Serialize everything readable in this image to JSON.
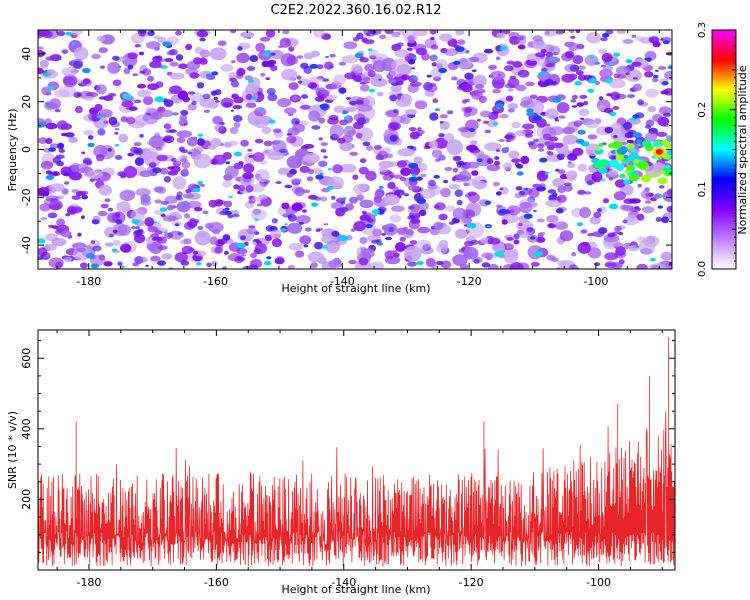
{
  "title": "C2E2.2022.360.16.02.R12",
  "chart_data": [
    {
      "type": "heatmap",
      "xlabel": "Height of straight line (km)",
      "ylabel": "Frequency (Hz)",
      "xlim": [
        -188,
        -88
      ],
      "ylim": [
        -50,
        50
      ],
      "x_ticks": [
        -180,
        -160,
        -140,
        -120,
        -100
      ],
      "y_ticks": [
        -40,
        -20,
        0,
        20,
        40
      ],
      "colorbar": {
        "label": "Normalized spectral amplitude",
        "range": [
          0.0,
          0.3
        ],
        "ticks": [
          0.0,
          0.1,
          0.2,
          0.3
        ],
        "colors": [
          "#ffffff",
          "#c080ff",
          "#8000ff",
          "#0000ff",
          "#00ffff",
          "#00ff00",
          "#ffff00",
          "#ff0000",
          "#ff00ff"
        ]
      },
      "peak": {
        "x": -90,
        "y": -1,
        "value": 0.3
      },
      "hotspot_region": {
        "x_from": -100,
        "x_to": -88,
        "y_center": -5
      }
    },
    {
      "type": "line",
      "xlabel": "Height of straight line (km)",
      "ylabel": "SNR (10 * v/v)",
      "xlim": [
        -188,
        -88
      ],
      "ylim": [
        0,
        680
      ],
      "x_ticks": [
        -180,
        -160,
        -140,
        -120,
        -100
      ],
      "y_ticks": [
        200,
        400,
        600
      ],
      "series": [
        {
          "color": "#e8262a",
          "baseline_mean": 120,
          "typical_peak": 250,
          "notable_spikes": [
            {
              "x": -182,
              "y": 420
            },
            {
              "x": -118,
              "y": 420
            },
            {
              "x": -97,
              "y": 470
            },
            {
              "x": -92,
              "y": 550
            },
            {
              "x": -89,
              "y": 660
            }
          ]
        }
      ]
    }
  ]
}
